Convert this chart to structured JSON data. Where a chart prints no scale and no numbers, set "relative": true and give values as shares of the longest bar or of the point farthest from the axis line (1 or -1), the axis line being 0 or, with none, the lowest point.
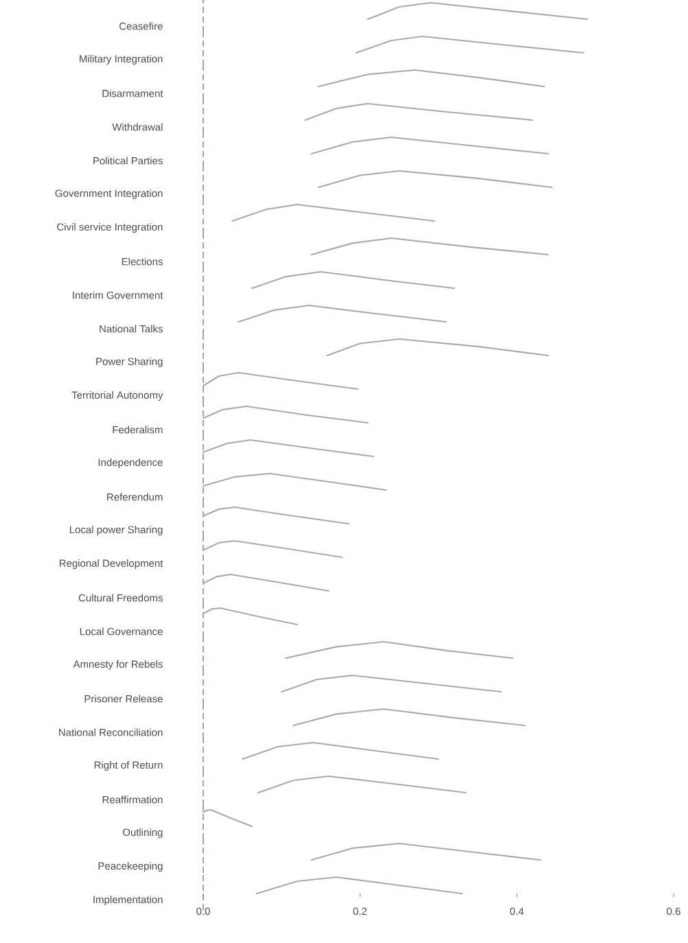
{
  "chart_data": [
    {
      "type": "line",
      "relative": true,
      "ylabel": "Ceasefire",
      "xlim": [
        0,
        0.6
      ],
      "tick_labels": false,
      "ref_lines": [
        {
          "axis": "x",
          "value": 0,
          "color": "#666666",
          "line_style": "dashed"
        }
      ],
      "series": [
        {
          "color": "#aaaaaa",
          "x": [
            0.21,
            0.25,
            0.29,
            0.39,
            0.49
          ],
          "values": [
            0,
            0.75,
            1,
            0.5,
            0
          ]
        }
      ]
    },
    {
      "type": "line",
      "relative": true,
      "ylabel": "Military Integration",
      "xlim": [
        0,
        0.6
      ],
      "tick_labels": false,
      "ref_lines": [
        {
          "axis": "x",
          "value": 0,
          "color": "#666666",
          "line_style": "dashed"
        }
      ],
      "series": [
        {
          "color": "#aaaaaa",
          "x": [
            0.195,
            0.24,
            0.28,
            0.38,
            0.485
          ],
          "values": [
            0,
            0.75,
            1,
            0.5,
            0
          ]
        }
      ]
    },
    {
      "type": "line",
      "relative": true,
      "ylabel": "Disarmament",
      "xlim": [
        0,
        0.6
      ],
      "tick_labels": false,
      "ref_lines": [
        {
          "axis": "x",
          "value": 0,
          "color": "#666666",
          "line_style": "dashed"
        }
      ],
      "series": [
        {
          "color": "#aaaaaa",
          "x": [
            0.147,
            0.21,
            0.27,
            0.35,
            0.435
          ],
          "values": [
            0,
            0.73,
            1,
            0.55,
            0
          ]
        }
      ]
    },
    {
      "type": "line",
      "relative": true,
      "ylabel": "Withdrawal",
      "xlim": [
        0,
        0.6
      ],
      "tick_labels": false,
      "ref_lines": [
        {
          "axis": "x",
          "value": 0,
          "color": "#666666",
          "line_style": "dashed"
        }
      ],
      "series": [
        {
          "color": "#aaaaaa",
          "x": [
            0.13,
            0.17,
            0.21,
            0.31,
            0.42
          ],
          "values": [
            0,
            0.71,
            1,
            0.5,
            0
          ]
        }
      ]
    },
    {
      "type": "line",
      "relative": true,
      "ylabel": "Political Parties",
      "xlim": [
        0,
        0.6
      ],
      "tick_labels": false,
      "ref_lines": [
        {
          "axis": "x",
          "value": 0,
          "color": "#666666",
          "line_style": "dashed"
        }
      ],
      "series": [
        {
          "color": "#aaaaaa",
          "x": [
            0.138,
            0.19,
            0.24,
            0.34,
            0.44
          ],
          "values": [
            0,
            0.71,
            1,
            0.5,
            0
          ]
        }
      ]
    },
    {
      "type": "line",
      "relative": true,
      "ylabel": "Government Integration",
      "xlim": [
        0,
        0.6
      ],
      "tick_labels": false,
      "ref_lines": [
        {
          "axis": "x",
          "value": 0,
          "color": "#666666",
          "line_style": "dashed"
        }
      ],
      "series": [
        {
          "color": "#aaaaaa",
          "x": [
            0.147,
            0.2,
            0.25,
            0.35,
            0.445
          ],
          "values": [
            0,
            0.73,
            1,
            0.55,
            0
          ]
        }
      ]
    },
    {
      "type": "line",
      "relative": true,
      "ylabel": "Civil service Integration",
      "xlim": [
        0,
        0.6
      ],
      "tick_labels": false,
      "ref_lines": [
        {
          "axis": "x",
          "value": 0,
          "color": "#666666",
          "line_style": "dashed"
        }
      ],
      "series": [
        {
          "color": "#aaaaaa",
          "x": [
            0.037,
            0.08,
            0.12,
            0.21,
            0.295
          ],
          "values": [
            0,
            0.7,
            1,
            0.48,
            0
          ]
        }
      ]
    },
    {
      "type": "line",
      "relative": true,
      "ylabel": "Elections",
      "xlim": [
        0,
        0.6
      ],
      "tick_labels": false,
      "ref_lines": [
        {
          "axis": "x",
          "value": 0,
          "color": "#666666",
          "line_style": "dashed"
        }
      ],
      "series": [
        {
          "color": "#aaaaaa",
          "x": [
            0.138,
            0.19,
            0.24,
            0.34,
            0.44
          ],
          "values": [
            0,
            0.69,
            1,
            0.46,
            0
          ]
        }
      ]
    },
    {
      "type": "line",
      "relative": true,
      "ylabel": "Interim Government",
      "xlim": [
        0,
        0.6
      ],
      "tick_labels": false,
      "ref_lines": [
        {
          "axis": "x",
          "value": 0,
          "color": "#666666",
          "line_style": "dashed"
        }
      ],
      "series": [
        {
          "color": "#aaaaaa",
          "x": [
            0.062,
            0.105,
            0.15,
            0.235,
            0.32
          ],
          "values": [
            0,
            0.7,
            1,
            0.48,
            0
          ]
        }
      ]
    },
    {
      "type": "line",
      "relative": true,
      "ylabel": "National Talks",
      "xlim": [
        0,
        0.6
      ],
      "tick_labels": false,
      "ref_lines": [
        {
          "axis": "x",
          "value": 0,
          "color": "#666666",
          "line_style": "dashed"
        }
      ],
      "series": [
        {
          "color": "#aaaaaa",
          "x": [
            0.045,
            0.09,
            0.135,
            0.22,
            0.31
          ],
          "values": [
            0,
            0.71,
            1,
            0.5,
            0
          ]
        }
      ]
    },
    {
      "type": "line",
      "relative": true,
      "ylabel": "Power Sharing",
      "xlim": [
        0,
        0.6
      ],
      "tick_labels": false,
      "ref_lines": [
        {
          "axis": "x",
          "value": 0,
          "color": "#666666",
          "line_style": "dashed"
        }
      ],
      "series": [
        {
          "color": "#aaaaaa",
          "x": [
            0.158,
            0.2,
            0.25,
            0.35,
            0.44
          ],
          "values": [
            0,
            0.73,
            1,
            0.55,
            0
          ]
        }
      ]
    },
    {
      "type": "line",
      "relative": true,
      "ylabel": "Territorial Autonomy",
      "xlim": [
        0,
        0.6
      ],
      "tick_labels": false,
      "ref_lines": [
        {
          "axis": "x",
          "value": 0,
          "color": "#666666",
          "line_style": "dashed"
        }
      ],
      "series": [
        {
          "color": "#aaaaaa",
          "x": [
            0,
            0.02,
            0.045,
            0.12,
            0.197
          ],
          "values": [
            0.21,
            0.79,
            1,
            0.5,
            0
          ]
        }
      ]
    },
    {
      "type": "line",
      "relative": true,
      "ylabel": "Federalism",
      "xlim": [
        0,
        0.6
      ],
      "tick_labels": false,
      "ref_lines": [
        {
          "axis": "x",
          "value": 0,
          "color": "#666666",
          "line_style": "dashed"
        }
      ],
      "series": [
        {
          "color": "#aaaaaa",
          "x": [
            0,
            0.025,
            0.055,
            0.13,
            0.21
          ],
          "values": [
            0.28,
            0.8,
            1,
            0.48,
            0
          ]
        }
      ]
    },
    {
      "type": "line",
      "relative": true,
      "ylabel": "Independence",
      "xlim": [
        0,
        0.6
      ],
      "tick_labels": false,
      "ref_lines": [
        {
          "axis": "x",
          "value": 0,
          "color": "#666666",
          "line_style": "dashed"
        }
      ],
      "series": [
        {
          "color": "#aaaaaa",
          "x": [
            0,
            0.03,
            0.06,
            0.14,
            0.217
          ],
          "values": [
            0.26,
            0.78,
            1,
            0.48,
            0
          ]
        }
      ]
    },
    {
      "type": "line",
      "relative": true,
      "ylabel": "Referendum",
      "xlim": [
        0,
        0.6
      ],
      "tick_labels": false,
      "ref_lines": [
        {
          "axis": "x",
          "value": 0,
          "color": "#666666",
          "line_style": "dashed"
        }
      ],
      "series": [
        {
          "color": "#aaaaaa",
          "x": [
            0,
            0.04,
            0.085,
            0.16,
            0.233
          ],
          "values": [
            0.25,
            0.8,
            1,
            0.5,
            0
          ]
        }
      ]
    },
    {
      "type": "line",
      "relative": true,
      "ylabel": "Local power Sharing",
      "xlim": [
        0,
        0.6
      ],
      "tick_labels": false,
      "ref_lines": [
        {
          "axis": "x",
          "value": 0,
          "color": "#666666",
          "line_style": "dashed"
        }
      ],
      "series": [
        {
          "color": "#aaaaaa",
          "x": [
            0,
            0.02,
            0.04,
            0.11,
            0.185
          ],
          "values": [
            0.47,
            0.88,
            1,
            0.5,
            0
          ]
        }
      ]
    },
    {
      "type": "line",
      "relative": true,
      "ylabel": "Regional Development",
      "xlim": [
        0,
        0.6
      ],
      "tick_labels": false,
      "ref_lines": [
        {
          "axis": "x",
          "value": 0,
          "color": "#666666",
          "line_style": "dashed"
        }
      ],
      "series": [
        {
          "color": "#aaaaaa",
          "x": [
            0,
            0.02,
            0.04,
            0.11,
            0.177
          ],
          "values": [
            0.44,
            0.88,
            1,
            0.5,
            0
          ]
        }
      ]
    },
    {
      "type": "line",
      "relative": true,
      "ylabel": "Cultural Freedoms",
      "xlim": [
        0,
        0.6
      ],
      "tick_labels": false,
      "ref_lines": [
        {
          "axis": "x",
          "value": 0,
          "color": "#666666",
          "line_style": "dashed"
        }
      ],
      "series": [
        {
          "color": "#aaaaaa",
          "x": [
            0,
            0.017,
            0.035,
            0.1,
            0.16
          ],
          "values": [
            0.46,
            0.87,
            1,
            0.49,
            0
          ]
        }
      ]
    },
    {
      "type": "line",
      "relative": true,
      "ylabel": "Local Governance",
      "xlim": [
        0,
        0.6
      ],
      "tick_labels": false,
      "ref_lines": [
        {
          "axis": "x",
          "value": 0,
          "color": "#666666",
          "line_style": "dashed"
        }
      ],
      "series": [
        {
          "color": "#aaaaaa",
          "x": [
            0,
            0.011,
            0.022,
            0.07,
            0.12
          ],
          "values": [
            0.67,
            0.94,
            1,
            0.49,
            0
          ]
        }
      ]
    },
    {
      "type": "line",
      "relative": true,
      "ylabel": "Amnesty for Rebels",
      "xlim": [
        0,
        0.6
      ],
      "tick_labels": false,
      "ref_lines": [
        {
          "axis": "x",
          "value": 0,
          "color": "#666666",
          "line_style": "dashed"
        }
      ],
      "series": [
        {
          "color": "#aaaaaa",
          "x": [
            0.105,
            0.17,
            0.23,
            0.31,
            0.395
          ],
          "values": [
            0,
            0.69,
            1,
            0.46,
            0
          ]
        }
      ]
    },
    {
      "type": "line",
      "relative": true,
      "ylabel": "Prisoner Release",
      "xlim": [
        0,
        0.6
      ],
      "tick_labels": false,
      "ref_lines": [
        {
          "axis": "x",
          "value": 0,
          "color": "#666666",
          "line_style": "dashed"
        }
      ],
      "series": [
        {
          "color": "#aaaaaa",
          "x": [
            0.1,
            0.145,
            0.19,
            0.285,
            0.38
          ],
          "values": [
            0,
            0.75,
            1,
            0.5,
            0
          ]
        }
      ]
    },
    {
      "type": "line",
      "relative": true,
      "ylabel": "National Reconciliation",
      "xlim": [
        0,
        0.6
      ],
      "tick_labels": false,
      "ref_lines": [
        {
          "axis": "x",
          "value": 0,
          "color": "#666666",
          "line_style": "dashed"
        }
      ],
      "series": [
        {
          "color": "#aaaaaa",
          "x": [
            0.115,
            0.17,
            0.23,
            0.32,
            0.41
          ],
          "values": [
            0,
            0.69,
            1,
            0.46,
            0
          ]
        }
      ]
    },
    {
      "type": "line",
      "relative": true,
      "ylabel": "Right of Return",
      "xlim": [
        0,
        0.6
      ],
      "tick_labels": false,
      "ref_lines": [
        {
          "axis": "x",
          "value": 0,
          "color": "#666666",
          "line_style": "dashed"
        }
      ],
      "series": [
        {
          "color": "#aaaaaa",
          "x": [
            0.05,
            0.095,
            0.14,
            0.22,
            0.3
          ],
          "values": [
            0,
            0.75,
            1,
            0.5,
            0
          ]
        }
      ]
    },
    {
      "type": "line",
      "relative": true,
      "ylabel": "Reaffirmation",
      "xlim": [
        0,
        0.6
      ],
      "tick_labels": false,
      "ref_lines": [
        {
          "axis": "x",
          "value": 0,
          "color": "#666666",
          "line_style": "dashed"
        }
      ],
      "series": [
        {
          "color": "#aaaaaa",
          "x": [
            0.07,
            0.115,
            0.16,
            0.25,
            0.335
          ],
          "values": [
            0,
            0.75,
            1,
            0.5,
            0
          ]
        }
      ]
    },
    {
      "type": "line",
      "relative": true,
      "ylabel": "Outlining",
      "xlim": [
        0,
        0.6
      ],
      "tick_labels": false,
      "ref_lines": [
        {
          "axis": "x",
          "value": 0,
          "color": "#666666",
          "line_style": "dashed"
        }
      ],
      "series": [
        {
          "color": "#aaaaaa",
          "x": [
            0,
            0.005,
            0.01,
            0.035,
            0.062
          ],
          "values": [
            0.88,
            0.97,
            1,
            0.5,
            0
          ]
        }
      ]
    },
    {
      "type": "line",
      "relative": true,
      "ylabel": "Peacekeeping",
      "xlim": [
        0,
        0.6
      ],
      "tick_labels": false,
      "ref_lines": [
        {
          "axis": "x",
          "value": 0,
          "color": "#666666",
          "line_style": "dashed"
        }
      ],
      "series": [
        {
          "color": "#aaaaaa",
          "x": [
            0.138,
            0.19,
            0.25,
            0.34,
            0.43
          ],
          "values": [
            0,
            0.71,
            1,
            0.5,
            0
          ]
        }
      ]
    },
    {
      "type": "line",
      "relative": true,
      "ylabel": "Implementation",
      "xlim": [
        0,
        0.6
      ],
      "xticks": [
        {
          "value": 0,
          "label": "0.0"
        },
        0.2,
        0.4,
        0.6
      ],
      "tick_labels": "x",
      "ref_lines": [
        {
          "axis": "x",
          "value": 0,
          "color": "#666666",
          "line_style": "dashed"
        }
      ],
      "series": [
        {
          "color": "#aaaaaa",
          "x": [
            0.068,
            0.12,
            0.17,
            0.25,
            0.33
          ],
          "values": [
            0,
            0.75,
            1,
            0.5,
            0
          ]
        }
      ]
    }
  ]
}
